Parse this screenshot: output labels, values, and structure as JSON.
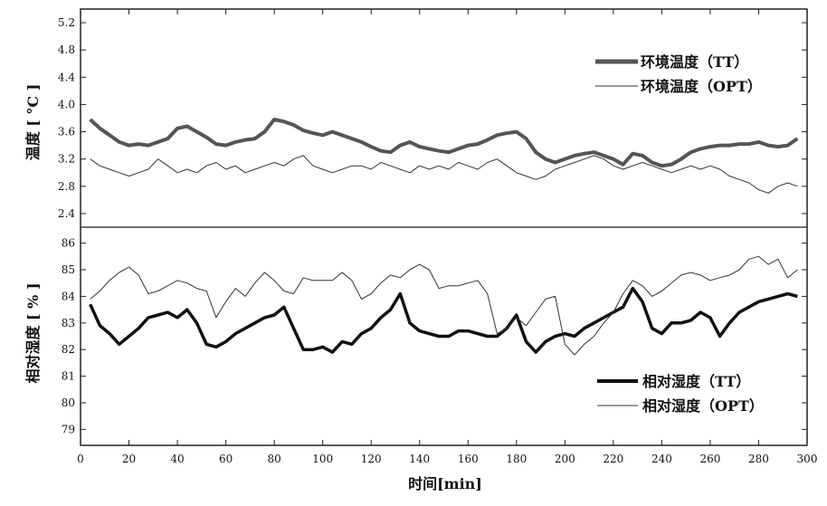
{
  "chart_data": [
    {
      "type": "line",
      "panel": "top",
      "ylabel": "温度 [ °C ]",
      "xlabel": "",
      "xlim": [
        0,
        300
      ],
      "ylim": [
        2.2,
        5.4
      ],
      "yticks": [
        2.4,
        2.8,
        3.2,
        3.6,
        4.0,
        4.4,
        4.8,
        5.2
      ],
      "legend_position": "top-right",
      "series": [
        {
          "name": "环境温度（TT）",
          "style": "thick",
          "x": [
            4,
            8,
            12,
            16,
            20,
            24,
            28,
            32,
            36,
            40,
            44,
            48,
            52,
            56,
            60,
            64,
            68,
            72,
            76,
            80,
            84,
            88,
            92,
            96,
            100,
            104,
            108,
            112,
            116,
            120,
            124,
            128,
            132,
            136,
            140,
            144,
            148,
            152,
            156,
            160,
            164,
            168,
            172,
            176,
            180,
            184,
            188,
            192,
            196,
            200,
            204,
            208,
            212,
            216,
            220,
            224,
            228,
            232,
            236,
            240,
            244,
            248,
            252,
            256,
            260,
            264,
            268,
            272,
            276,
            280,
            284,
            288,
            292,
            296
          ],
          "values": [
            3.78,
            3.65,
            3.55,
            3.45,
            3.4,
            3.42,
            3.4,
            3.45,
            3.5,
            3.65,
            3.68,
            3.6,
            3.52,
            3.42,
            3.4,
            3.45,
            3.48,
            3.5,
            3.6,
            3.78,
            3.75,
            3.7,
            3.62,
            3.58,
            3.55,
            3.6,
            3.55,
            3.5,
            3.45,
            3.38,
            3.32,
            3.3,
            3.4,
            3.45,
            3.38,
            3.35,
            3.32,
            3.3,
            3.35,
            3.4,
            3.42,
            3.48,
            3.55,
            3.58,
            3.6,
            3.5,
            3.3,
            3.2,
            3.15,
            3.2,
            3.25,
            3.28,
            3.3,
            3.25,
            3.2,
            3.12,
            3.28,
            3.25,
            3.15,
            3.1,
            3.12,
            3.2,
            3.3,
            3.35,
            3.38,
            3.4,
            3.4,
            3.42,
            3.42,
            3.45,
            3.4,
            3.38,
            3.4,
            3.5
          ]
        },
        {
          "name": "环境温度（OPT）",
          "style": "thin",
          "x": [
            4,
            8,
            12,
            16,
            20,
            24,
            28,
            32,
            36,
            40,
            44,
            48,
            52,
            56,
            60,
            64,
            68,
            72,
            76,
            80,
            84,
            88,
            92,
            96,
            100,
            104,
            108,
            112,
            116,
            120,
            124,
            128,
            132,
            136,
            140,
            144,
            148,
            152,
            156,
            160,
            164,
            168,
            172,
            176,
            180,
            184,
            188,
            192,
            196,
            200,
            204,
            208,
            212,
            216,
            220,
            224,
            228,
            232,
            236,
            240,
            244,
            248,
            252,
            256,
            260,
            264,
            268,
            272,
            276,
            280,
            284,
            288,
            292,
            296
          ],
          "values": [
            3.2,
            3.1,
            3.05,
            3.0,
            2.95,
            3.0,
            3.05,
            3.2,
            3.1,
            3.0,
            3.05,
            3.0,
            3.1,
            3.15,
            3.05,
            3.1,
            3.0,
            3.05,
            3.1,
            3.15,
            3.1,
            3.2,
            3.25,
            3.1,
            3.05,
            3.0,
            3.05,
            3.1,
            3.1,
            3.05,
            3.15,
            3.1,
            3.05,
            3.0,
            3.1,
            3.05,
            3.1,
            3.05,
            3.15,
            3.1,
            3.05,
            3.15,
            3.2,
            3.1,
            3.0,
            2.95,
            2.9,
            2.95,
            3.05,
            3.1,
            3.15,
            3.2,
            3.25,
            3.2,
            3.1,
            3.05,
            3.1,
            3.15,
            3.1,
            3.05,
            3.0,
            3.05,
            3.1,
            3.05,
            3.1,
            3.05,
            2.95,
            2.9,
            2.85,
            2.75,
            2.7,
            2.8,
            2.85,
            2.8
          ]
        }
      ]
    },
    {
      "type": "line",
      "panel": "bottom",
      "ylabel": "相对湿度 [ % ]",
      "xlabel": "时间[min]",
      "xlim": [
        0,
        300
      ],
      "ylim": [
        78.4,
        86.6
      ],
      "yticks": [
        79,
        80,
        81,
        82,
        83,
        84,
        85,
        86
      ],
      "xticks": [
        0,
        20,
        40,
        60,
        80,
        100,
        120,
        140,
        160,
        180,
        200,
        220,
        240,
        260,
        280,
        300
      ],
      "legend_position": "bottom-right",
      "series": [
        {
          "name": "相对湿度（TT）",
          "style": "thick",
          "x": [
            4,
            8,
            12,
            16,
            20,
            24,
            28,
            32,
            36,
            40,
            44,
            48,
            52,
            56,
            60,
            64,
            68,
            72,
            76,
            80,
            84,
            88,
            92,
            96,
            100,
            104,
            108,
            112,
            116,
            120,
            124,
            128,
            132,
            136,
            140,
            144,
            148,
            152,
            156,
            160,
            164,
            168,
            172,
            176,
            180,
            184,
            188,
            192,
            196,
            200,
            204,
            208,
            212,
            216,
            220,
            224,
            228,
            232,
            236,
            240,
            244,
            248,
            252,
            256,
            260,
            264,
            268,
            272,
            276,
            280,
            284,
            288,
            292,
            296
          ],
          "values": [
            83.7,
            82.9,
            82.6,
            82.2,
            82.5,
            82.8,
            83.2,
            83.3,
            83.4,
            83.2,
            83.5,
            83.0,
            82.2,
            82.1,
            82.3,
            82.6,
            82.8,
            83.0,
            83.2,
            83.3,
            83.6,
            82.8,
            82.0,
            82.0,
            82.1,
            81.9,
            82.3,
            82.2,
            82.6,
            82.8,
            83.2,
            83.5,
            84.1,
            83.0,
            82.7,
            82.6,
            82.5,
            82.5,
            82.7,
            82.7,
            82.6,
            82.5,
            82.5,
            82.8,
            83.3,
            82.3,
            81.9,
            82.3,
            82.5,
            82.6,
            82.5,
            82.8,
            83.0,
            83.2,
            83.4,
            83.6,
            84.3,
            83.8,
            82.8,
            82.6,
            83.0,
            83.0,
            83.1,
            83.4,
            83.2,
            82.5,
            83.0,
            83.4,
            83.6,
            83.8,
            83.9,
            84.0,
            84.1,
            84.0
          ]
        },
        {
          "name": "相对湿度（OPT）",
          "style": "thin",
          "x": [
            4,
            8,
            12,
            16,
            20,
            24,
            28,
            32,
            36,
            40,
            44,
            48,
            52,
            56,
            60,
            64,
            68,
            72,
            76,
            80,
            84,
            88,
            92,
            96,
            100,
            104,
            108,
            112,
            116,
            120,
            124,
            128,
            132,
            136,
            140,
            144,
            148,
            152,
            156,
            160,
            164,
            168,
            172,
            176,
            180,
            184,
            188,
            192,
            196,
            200,
            204,
            208,
            212,
            216,
            220,
            224,
            228,
            232,
            236,
            240,
            244,
            248,
            252,
            256,
            260,
            264,
            268,
            272,
            276,
            280,
            284,
            288,
            292,
            296
          ],
          "values": [
            83.9,
            84.2,
            84.6,
            84.9,
            85.1,
            84.8,
            84.1,
            84.2,
            84.4,
            84.6,
            84.5,
            84.3,
            84.2,
            83.2,
            83.8,
            84.3,
            84.0,
            84.5,
            84.9,
            84.6,
            84.2,
            84.1,
            84.7,
            84.6,
            84.6,
            84.6,
            84.9,
            84.6,
            83.9,
            84.1,
            84.5,
            84.8,
            84.7,
            85.0,
            85.2,
            85.0,
            84.3,
            84.4,
            84.4,
            84.5,
            84.6,
            84.1,
            82.6,
            82.8,
            83.2,
            82.9,
            83.4,
            83.9,
            84.0,
            82.2,
            81.8,
            82.2,
            82.5,
            83.0,
            83.4,
            84.1,
            84.6,
            84.4,
            84.0,
            84.2,
            84.5,
            84.8,
            84.9,
            84.8,
            84.6,
            84.7,
            84.8,
            85.0,
            85.4,
            85.5,
            85.2,
            85.4,
            84.7,
            85.0
          ]
        }
      ]
    }
  ]
}
